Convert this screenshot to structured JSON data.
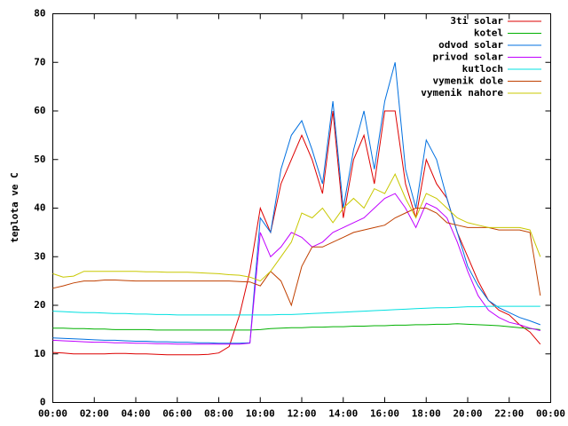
{
  "chart_data": {
    "type": "line",
    "y_label": "teplota ve C",
    "xlim": [
      0,
      24
    ],
    "xticks": [
      {
        "value": 0,
        "label": "00:00"
      },
      {
        "value": 2,
        "label": "02:00"
      },
      {
        "value": 4,
        "label": "04:00"
      },
      {
        "value": 6,
        "label": "06:00"
      },
      {
        "value": 8,
        "label": "08:00"
      },
      {
        "value": 10,
        "label": "10:00"
      },
      {
        "value": 12,
        "label": "12:00"
      },
      {
        "value": 14,
        "label": "14:00"
      },
      {
        "value": 16,
        "label": "16:00"
      },
      {
        "value": 18,
        "label": "18:00"
      },
      {
        "value": 20,
        "label": "20:00"
      },
      {
        "value": 22,
        "label": "22:00"
      },
      {
        "value": 24,
        "label": "00:00"
      }
    ],
    "ylim": [
      0,
      80
    ],
    "yticks": [
      0,
      10,
      20,
      30,
      40,
      50,
      60,
      70,
      80
    ],
    "legend": "top-right",
    "x": [
      0,
      0.5,
      1,
      1.5,
      2,
      2.5,
      3,
      3.5,
      4,
      4.5,
      5,
      5.5,
      6,
      6.5,
      7,
      7.5,
      8,
      8.5,
      9,
      9.5,
      10,
      10.5,
      11,
      11.5,
      12,
      12.5,
      13,
      13.5,
      14,
      14.5,
      15,
      15.5,
      16,
      16.5,
      17,
      17.5,
      18,
      18.5,
      19,
      19.5,
      20,
      20.5,
      21,
      21.5,
      22,
      22.5,
      23,
      23.5
    ],
    "series": [
      {
        "name": "3ti solar",
        "color": "#dd0000",
        "values": [
          10.3,
          10.2,
          10,
          10,
          10,
          10,
          10.1,
          10.1,
          10,
          10,
          9.9,
          9.8,
          9.8,
          9.8,
          9.8,
          9.9,
          10.2,
          11.5,
          18,
          27,
          40,
          35,
          45,
          50,
          55,
          50,
          43,
          60,
          38,
          50,
          55,
          45,
          60,
          60,
          45,
          38,
          50,
          45,
          42,
          35,
          30,
          25,
          21,
          19,
          18,
          16,
          14.5,
          12
        ]
      },
      {
        "name": "kotel",
        "color": "#00b000",
        "values": [
          15.3,
          15.3,
          15.2,
          15.2,
          15.1,
          15.1,
          15,
          15,
          15,
          15,
          14.9,
          14.9,
          14.9,
          14.9,
          14.9,
          14.9,
          14.9,
          14.9,
          14.9,
          14.9,
          15,
          15.2,
          15.3,
          15.4,
          15.4,
          15.5,
          15.5,
          15.6,
          15.6,
          15.7,
          15.7,
          15.8,
          15.8,
          15.9,
          15.9,
          16,
          16,
          16.1,
          16.1,
          16.2,
          16.1,
          16,
          15.9,
          15.8,
          15.6,
          15.4,
          15.2,
          15
        ]
      },
      {
        "name": "odvod solar",
        "color": "#0070e0",
        "values": [
          13.3,
          13.2,
          13.1,
          13,
          12.9,
          12.8,
          12.8,
          12.7,
          12.6,
          12.6,
          12.5,
          12.5,
          12.4,
          12.4,
          12.3,
          12.3,
          12.2,
          12.2,
          12.2,
          12.3,
          38,
          35,
          48,
          55,
          58,
          52,
          45,
          62,
          40,
          52,
          60,
          48,
          62,
          70,
          48,
          40,
          54,
          50,
          42,
          35,
          28,
          24,
          21,
          19.5,
          18.5,
          17.5,
          16.8,
          16
        ]
      },
      {
        "name": "privod solar",
        "color": "#c000ff",
        "values": [
          12.8,
          12.7,
          12.6,
          12.5,
          12.4,
          12.4,
          12.3,
          12.3,
          12.2,
          12.2,
          12.1,
          12.1,
          12,
          12,
          12,
          12,
          12,
          12,
          12,
          12.2,
          35,
          30,
          32,
          35,
          34,
          32,
          33,
          35,
          36,
          37,
          38,
          40,
          42,
          43,
          40,
          36,
          41,
          40,
          38,
          33,
          27,
          22,
          19,
          17.5,
          16.5,
          16,
          15.3,
          14.8
        ]
      },
      {
        "name": "kutloch",
        "color": "#00e0e0",
        "values": [
          18.8,
          18.7,
          18.6,
          18.5,
          18.5,
          18.4,
          18.3,
          18.3,
          18.2,
          18.2,
          18.1,
          18.1,
          18,
          18,
          18,
          18,
          18,
          18,
          18,
          18,
          18,
          18,
          18.1,
          18.1,
          18.2,
          18.3,
          18.4,
          18.5,
          18.6,
          18.7,
          18.8,
          18.9,
          19,
          19.1,
          19.2,
          19.3,
          19.4,
          19.5,
          19.5,
          19.6,
          19.7,
          19.7,
          19.8,
          19.8,
          19.8,
          19.8,
          19.8,
          19.8
        ]
      },
      {
        "name": "vymenik dole",
        "color": "#c04000",
        "values": [
          23.5,
          24,
          24.6,
          25,
          25,
          25.2,
          25.2,
          25.1,
          25,
          25,
          25,
          25,
          25,
          25,
          25,
          25,
          25,
          25,
          24.9,
          24.8,
          24,
          27,
          25,
          20,
          28,
          32,
          32,
          33,
          34,
          35,
          35.5,
          36,
          36.5,
          38,
          39,
          40,
          40,
          39,
          37,
          36.5,
          36,
          36,
          36,
          35.5,
          35.5,
          35.5,
          35,
          22
        ]
      },
      {
        "name": "vymenik nahore",
        "color": "#c8c800",
        "values": [
          26.5,
          25.8,
          26,
          27,
          27,
          27,
          27,
          27,
          27,
          26.9,
          26.9,
          26.8,
          26.8,
          26.8,
          26.7,
          26.6,
          26.5,
          26.3,
          26.2,
          25.8,
          25,
          27,
          30,
          33,
          39,
          38,
          40,
          37,
          40,
          42,
          40,
          44,
          43,
          47,
          42,
          38,
          43,
          42,
          40,
          38,
          37,
          36.5,
          36,
          36,
          36,
          36,
          35.5,
          30
        ]
      }
    ]
  }
}
